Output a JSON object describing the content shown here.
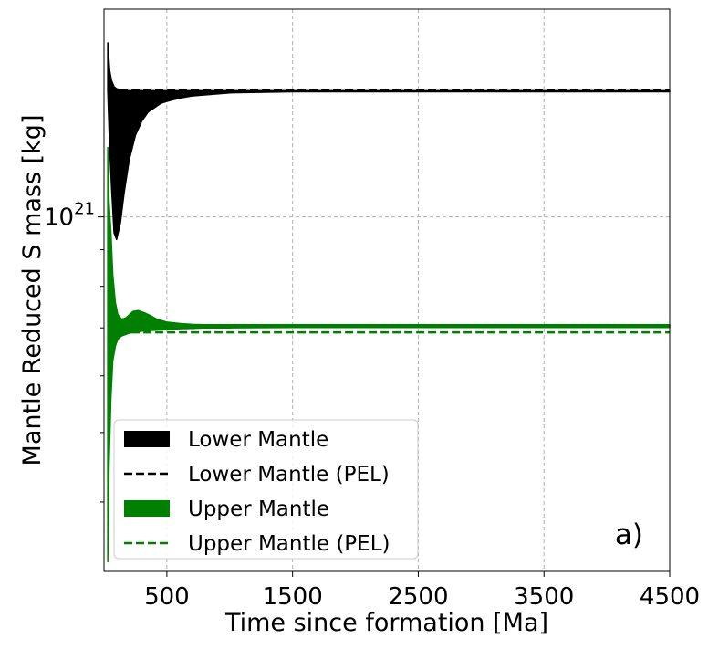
{
  "chart_data": {
    "type": "area",
    "title": "",
    "xlabel": "Time since formation [Ma]",
    "ylabel": "Mantle Reduced S mass [kg]",
    "panel_label": "a)",
    "xlim": [
      0,
      4500
    ],
    "ylim": [
      3.2e+20,
      1.95e+21
    ],
    "yscale": "log",
    "grid": true,
    "legend_position": "lower-left",
    "x_ticks": [
      500,
      1500,
      2500,
      3500,
      4500
    ],
    "x_tick_labels": [
      "500",
      "1500",
      "2500",
      "3500",
      "4500"
    ],
    "y_major_ticks": [
      {
        "value": 1e+21,
        "base": "10",
        "exponent": "21"
      }
    ],
    "y_minor_ticks": [
      4e+20,
      5e+20,
      6e+20,
      7e+20,
      8e+20,
      9e+20
    ],
    "series": [
      {
        "name": "Lower Mantle",
        "kind": "band",
        "color": "#000000",
        "x": [
          30,
          45,
          60,
          80,
          100,
          130,
          160,
          200,
          250,
          300,
          350,
          400,
          450,
          500,
          600,
          700,
          800,
          1000,
          1500,
          2500,
          3500,
          4500
        ],
        "upper": [
          1.75e+21,
          1.6e+21,
          1.55e+21,
          1.52e+21,
          1.51e+21,
          1.505e+21,
          1.5e+21,
          1.5e+21,
          1.5e+21,
          1.5e+21,
          1.5e+21,
          1.5e+21,
          1.5e+21,
          1.5e+21,
          1.5e+21,
          1.5e+21,
          1.5e+21,
          1.5e+21,
          1.5e+21,
          1.5e+21,
          1.5e+21,
          1.5e+21
        ],
        "lower": [
          1.5e+21,
          1.25e+21,
          1.1e+21,
          9.5e+20,
          9.3e+20,
          9.8e+20,
          1.08e+21,
          1.2e+21,
          1.3e+21,
          1.36e+21,
          1.4e+21,
          1.42e+21,
          1.44e+21,
          1.45e+21,
          1.465e+21,
          1.475e+21,
          1.48e+21,
          1.49e+21,
          1.495e+21,
          1.495e+21,
          1.495e+21,
          1.495e+21
        ]
      },
      {
        "name": "Lower Mantle (PEL)",
        "kind": "dashed",
        "color": "#000000",
        "x": [
          30,
          4500
        ],
        "y": [
          1.505e+21,
          1.505e+21
        ]
      },
      {
        "name": "Upper Mantle",
        "kind": "band",
        "color": "#008000",
        "x": [
          30,
          40,
          55,
          70,
          90,
          110,
          140,
          170,
          200,
          230,
          270,
          320,
          370,
          420,
          500,
          600,
          700,
          800,
          1000,
          1500,
          2500,
          3500,
          4500
        ],
        "upper": [
          1.25e+21,
          1.05e+21,
          9.5e+20,
          8.3e+20,
          7.6e+20,
          7.3e+20,
          7.2e+20,
          7.22e+20,
          7.3e+20,
          7.38e+20,
          7.4e+20,
          7.35e+20,
          7.28e+20,
          7.2e+20,
          7.13e+20,
          7.1e+20,
          7.08e+20,
          7.07e+20,
          7.07e+20,
          7.07e+20,
          7.07e+20,
          7.07e+20,
          7.07e+20
        ],
        "lower": [
          3.3e+20,
          4.5e+20,
          5.6e+20,
          6.3e+20,
          6.6e+20,
          6.75e+20,
          6.82e+20,
          6.85e+20,
          6.88e+20,
          6.9e+20,
          6.92e+20,
          6.93e+20,
          6.94e+20,
          6.95e+20,
          6.96e+20,
          6.98e+20,
          6.99e+20,
          7e+20,
          7e+20,
          7.01e+20,
          7.01e+20,
          7.01e+20,
          7.01e+20
        ]
      },
      {
        "name": "Upper Mantle (PEL)",
        "kind": "dashed",
        "color": "#008000",
        "x": [
          30,
          4500
        ],
        "y": [
          6.9e+20,
          6.9e+20
        ]
      }
    ]
  }
}
